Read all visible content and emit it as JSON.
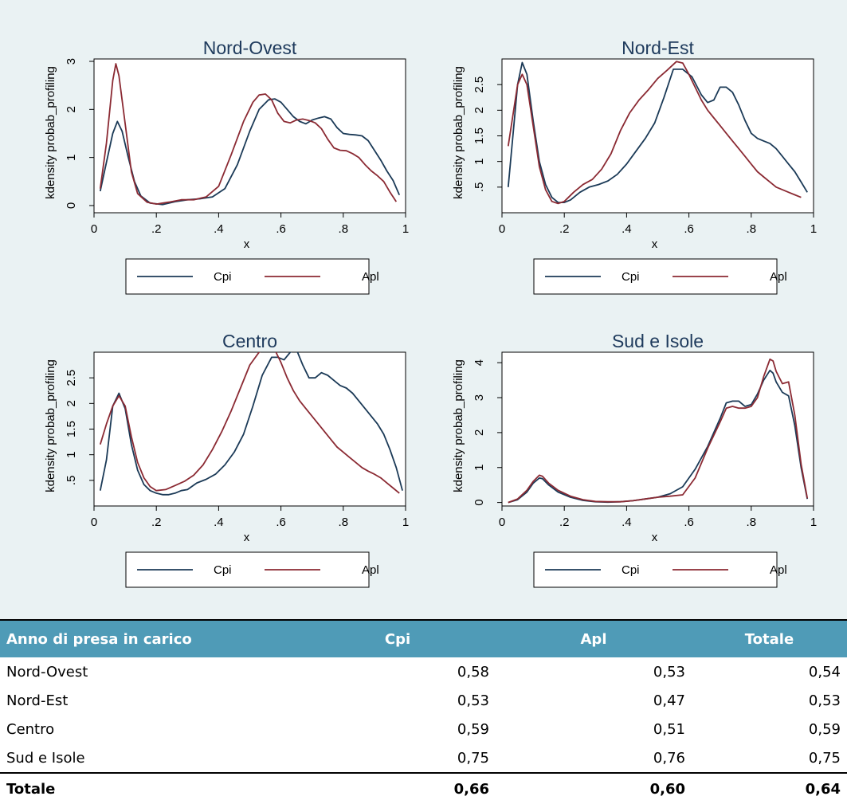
{
  "chart_data": [
    {
      "type": "line",
      "title": "Nord-Ovest",
      "xlabel": "x",
      "ylabel": "kdensity probab_profiling",
      "xlim": [
        0,
        1
      ],
      "ylim": [
        -0.15,
        3.05
      ],
      "xticks": [
        0,
        0.2,
        0.4,
        0.6,
        0.8,
        1
      ],
      "xtick_labels": [
        "0",
        ".2",
        ".4",
        ".6",
        ".8",
        "1"
      ],
      "yticks": [
        0,
        1,
        2,
        3
      ],
      "ytick_labels": [
        "0",
        "1",
        "2",
        "3"
      ],
      "legend": "bottom",
      "series": [
        {
          "name": "Cpi",
          "color": "#1b3a57",
          "x": [
            0.02,
            0.04,
            0.06,
            0.075,
            0.09,
            0.11,
            0.13,
            0.15,
            0.18,
            0.22,
            0.26,
            0.3,
            0.34,
            0.38,
            0.42,
            0.46,
            0.5,
            0.53,
            0.56,
            0.58,
            0.6,
            0.62,
            0.64,
            0.66,
            0.68,
            0.7,
            0.72,
            0.74,
            0.76,
            0.78,
            0.8,
            0.82,
            0.84,
            0.86,
            0.88,
            0.9,
            0.92,
            0.94,
            0.96,
            0.98
          ],
          "y": [
            0.3,
            0.9,
            1.5,
            1.75,
            1.55,
            1.0,
            0.5,
            0.2,
            0.05,
            0.02,
            0.08,
            0.12,
            0.14,
            0.18,
            0.35,
            0.85,
            1.55,
            2.0,
            2.2,
            2.22,
            2.15,
            2.0,
            1.85,
            1.75,
            1.7,
            1.78,
            1.82,
            1.85,
            1.8,
            1.62,
            1.5,
            1.48,
            1.47,
            1.45,
            1.35,
            1.15,
            0.95,
            0.72,
            0.52,
            0.22
          ]
        },
        {
          "name": "Apl",
          "color": "#8b2a33",
          "x": [
            0.02,
            0.04,
            0.06,
            0.07,
            0.08,
            0.1,
            0.12,
            0.14,
            0.17,
            0.2,
            0.24,
            0.28,
            0.32,
            0.36,
            0.4,
            0.44,
            0.48,
            0.51,
            0.53,
            0.55,
            0.57,
            0.59,
            0.61,
            0.63,
            0.65,
            0.67,
            0.69,
            0.71,
            0.73,
            0.75,
            0.77,
            0.79,
            0.81,
            0.83,
            0.85,
            0.87,
            0.89,
            0.91,
            0.93,
            0.95,
            0.97
          ],
          "y": [
            0.35,
            1.3,
            2.6,
            2.95,
            2.7,
            1.7,
            0.7,
            0.25,
            0.07,
            0.03,
            0.07,
            0.12,
            0.12,
            0.18,
            0.4,
            1.05,
            1.75,
            2.15,
            2.3,
            2.32,
            2.2,
            1.92,
            1.75,
            1.72,
            1.78,
            1.8,
            1.77,
            1.72,
            1.6,
            1.38,
            1.2,
            1.15,
            1.14,
            1.08,
            1.0,
            0.85,
            0.72,
            0.62,
            0.5,
            0.28,
            0.08
          ]
        }
      ]
    },
    {
      "type": "line",
      "title": "Nord-Est",
      "xlabel": "x",
      "ylabel": "kdensity probab_profiling",
      "xlim": [
        0,
        1
      ],
      "ylim": [
        0,
        3.0
      ],
      "xticks": [
        0,
        0.2,
        0.4,
        0.6,
        0.8,
        1
      ],
      "xtick_labels": [
        "0",
        ".2",
        ".4",
        ".6",
        ".8",
        "1"
      ],
      "yticks": [
        0.5,
        1,
        1.5,
        2,
        2.5
      ],
      "ytick_labels": [
        ".5",
        "1",
        "1.5",
        "2",
        "2.5"
      ],
      "legend": "bottom",
      "series": [
        {
          "name": "Cpi",
          "color": "#1b3a57",
          "x": [
            0.02,
            0.035,
            0.05,
            0.065,
            0.08,
            0.1,
            0.12,
            0.14,
            0.16,
            0.18,
            0.2,
            0.22,
            0.25,
            0.28,
            0.31,
            0.34,
            0.37,
            0.4,
            0.43,
            0.46,
            0.49,
            0.52,
            0.55,
            0.58,
            0.61,
            0.64,
            0.66,
            0.68,
            0.7,
            0.72,
            0.74,
            0.76,
            0.78,
            0.8,
            0.82,
            0.84,
            0.86,
            0.88,
            0.9,
            0.92,
            0.94,
            0.96,
            0.98
          ],
          "y": [
            0.5,
            1.5,
            2.5,
            2.93,
            2.7,
            1.8,
            1.0,
            0.55,
            0.3,
            0.2,
            0.2,
            0.25,
            0.4,
            0.5,
            0.55,
            0.62,
            0.75,
            0.95,
            1.2,
            1.45,
            1.75,
            2.25,
            2.8,
            2.8,
            2.65,
            2.3,
            2.15,
            2.2,
            2.45,
            2.45,
            2.35,
            2.1,
            1.8,
            1.55,
            1.45,
            1.4,
            1.35,
            1.25,
            1.1,
            0.95,
            0.8,
            0.6,
            0.4
          ]
        },
        {
          "name": "Apl",
          "color": "#8b2a33",
          "x": [
            0.02,
            0.035,
            0.05,
            0.065,
            0.08,
            0.1,
            0.12,
            0.14,
            0.16,
            0.18,
            0.2,
            0.23,
            0.26,
            0.29,
            0.32,
            0.35,
            0.38,
            0.41,
            0.44,
            0.47,
            0.5,
            0.53,
            0.56,
            0.58,
            0.6,
            0.62,
            0.64,
            0.66,
            0.68,
            0.7,
            0.72,
            0.74,
            0.76,
            0.78,
            0.8,
            0.82,
            0.84,
            0.86,
            0.88,
            0.9,
            0.92,
            0.94,
            0.96
          ],
          "y": [
            1.3,
            1.9,
            2.5,
            2.7,
            2.5,
            1.7,
            0.9,
            0.45,
            0.22,
            0.18,
            0.22,
            0.4,
            0.55,
            0.65,
            0.85,
            1.15,
            1.6,
            1.95,
            2.2,
            2.4,
            2.62,
            2.78,
            2.95,
            2.92,
            2.7,
            2.45,
            2.2,
            2.0,
            1.85,
            1.7,
            1.55,
            1.4,
            1.25,
            1.1,
            0.95,
            0.8,
            0.7,
            0.6,
            0.5,
            0.45,
            0.4,
            0.35,
            0.3
          ]
        }
      ]
    },
    {
      "type": "line",
      "title": "Centro",
      "xlabel": "x",
      "ylabel": "kdensity probab_profiling",
      "xlim": [
        0,
        1
      ],
      "ylim": [
        0,
        3.0
      ],
      "xticks": [
        0,
        0.2,
        0.4,
        0.6,
        0.8,
        1
      ],
      "xtick_labels": [
        "0",
        ".2",
        ".4",
        ".6",
        ".8",
        "1"
      ],
      "yticks": [
        0.5,
        1,
        1.5,
        2,
        2.5
      ],
      "ytick_labels": [
        ".5",
        "1",
        "1.5",
        "2",
        "2.5"
      ],
      "legend": "bottom",
      "series": [
        {
          "name": "Cpi",
          "color": "#1b3a57",
          "x": [
            0.02,
            0.04,
            0.06,
            0.08,
            0.1,
            0.12,
            0.14,
            0.16,
            0.18,
            0.2,
            0.22,
            0.24,
            0.26,
            0.28,
            0.3,
            0.33,
            0.36,
            0.39,
            0.42,
            0.45,
            0.48,
            0.51,
            0.54,
            0.57,
            0.59,
            0.61,
            0.63,
            0.65,
            0.67,
            0.69,
            0.71,
            0.73,
            0.75,
            0.77,
            0.79,
            0.81,
            0.83,
            0.85,
            0.87,
            0.89,
            0.91,
            0.93,
            0.95,
            0.97,
            0.99
          ],
          "y": [
            0.3,
            0.9,
            1.95,
            2.2,
            1.9,
            1.2,
            0.7,
            0.42,
            0.3,
            0.25,
            0.22,
            0.22,
            0.25,
            0.3,
            0.32,
            0.45,
            0.52,
            0.62,
            0.8,
            1.05,
            1.4,
            1.95,
            2.55,
            2.9,
            2.9,
            2.85,
            3.0,
            3.05,
            2.75,
            2.5,
            2.5,
            2.6,
            2.55,
            2.45,
            2.35,
            2.3,
            2.2,
            2.05,
            1.9,
            1.75,
            1.6,
            1.4,
            1.1,
            0.75,
            0.3
          ]
        },
        {
          "name": "Apl",
          "color": "#8b2a33",
          "x": [
            0.02,
            0.04,
            0.06,
            0.08,
            0.1,
            0.12,
            0.14,
            0.16,
            0.18,
            0.2,
            0.23,
            0.26,
            0.29,
            0.32,
            0.35,
            0.38,
            0.41,
            0.44,
            0.47,
            0.5,
            0.53,
            0.56,
            0.58,
            0.6,
            0.62,
            0.64,
            0.66,
            0.68,
            0.7,
            0.72,
            0.74,
            0.76,
            0.78,
            0.8,
            0.82,
            0.84,
            0.86,
            0.88,
            0.9,
            0.92,
            0.94,
            0.96,
            0.98
          ],
          "y": [
            1.2,
            1.6,
            1.95,
            2.15,
            1.95,
            1.35,
            0.85,
            0.55,
            0.38,
            0.3,
            0.32,
            0.4,
            0.48,
            0.6,
            0.8,
            1.1,
            1.45,
            1.85,
            2.3,
            2.75,
            3.0,
            3.1,
            3.05,
            2.8,
            2.5,
            2.25,
            2.05,
            1.9,
            1.75,
            1.6,
            1.45,
            1.3,
            1.15,
            1.05,
            0.95,
            0.85,
            0.75,
            0.68,
            0.62,
            0.55,
            0.45,
            0.35,
            0.25
          ]
        }
      ]
    },
    {
      "type": "line",
      "title": "Sud e Isole",
      "xlabel": "x",
      "ylabel": "kdensity probab_profiling",
      "xlim": [
        0,
        1
      ],
      "ylim": [
        -0.1,
        4.3
      ],
      "xticks": [
        0,
        0.2,
        0.4,
        0.6,
        0.8,
        1
      ],
      "xtick_labels": [
        "0",
        ".2",
        ".4",
        ".6",
        ".8",
        "1"
      ],
      "yticks": [
        0,
        1,
        2,
        3,
        4
      ],
      "ytick_labels": [
        "0",
        "1",
        "2",
        "3",
        "4"
      ],
      "legend": "bottom",
      "series": [
        {
          "name": "Cpi",
          "color": "#1b3a57",
          "x": [
            0.02,
            0.05,
            0.08,
            0.1,
            0.12,
            0.13,
            0.15,
            0.18,
            0.22,
            0.26,
            0.3,
            0.34,
            0.38,
            0.42,
            0.46,
            0.5,
            0.54,
            0.58,
            0.62,
            0.66,
            0.7,
            0.72,
            0.74,
            0.76,
            0.78,
            0.8,
            0.82,
            0.84,
            0.86,
            0.87,
            0.88,
            0.9,
            0.92,
            0.94,
            0.96,
            0.98
          ],
          "y": [
            0,
            0.08,
            0.3,
            0.55,
            0.7,
            0.68,
            0.5,
            0.3,
            0.15,
            0.06,
            0.02,
            0.01,
            0.02,
            0.05,
            0.1,
            0.15,
            0.25,
            0.45,
            0.95,
            1.6,
            2.4,
            2.85,
            2.9,
            2.9,
            2.75,
            2.8,
            3.1,
            3.5,
            3.78,
            3.7,
            3.45,
            3.15,
            3.05,
            2.2,
            1.0,
            0.1
          ]
        },
        {
          "name": "Apl",
          "color": "#8b2a33",
          "x": [
            0.02,
            0.05,
            0.08,
            0.1,
            0.12,
            0.13,
            0.15,
            0.18,
            0.22,
            0.26,
            0.3,
            0.34,
            0.38,
            0.42,
            0.46,
            0.5,
            0.54,
            0.58,
            0.62,
            0.66,
            0.7,
            0.72,
            0.74,
            0.76,
            0.78,
            0.8,
            0.82,
            0.84,
            0.86,
            0.87,
            0.88,
            0.9,
            0.92,
            0.94,
            0.96,
            0.98
          ],
          "y": [
            0,
            0.1,
            0.35,
            0.6,
            0.78,
            0.75,
            0.55,
            0.35,
            0.18,
            0.08,
            0.03,
            0.02,
            0.02,
            0.05,
            0.1,
            0.15,
            0.18,
            0.22,
            0.7,
            1.55,
            2.3,
            2.7,
            2.75,
            2.7,
            2.7,
            2.75,
            3.0,
            3.6,
            4.1,
            4.05,
            3.75,
            3.4,
            3.45,
            2.5,
            1.1,
            0.12
          ]
        }
      ]
    }
  ],
  "table": {
    "header": [
      "Anno di presa in carico",
      "Cpi",
      "Apl",
      "Totale"
    ],
    "rows": [
      [
        "Nord-Ovest",
        "0,58",
        "0,53",
        "0,54"
      ],
      [
        "Nord-Est",
        "0,53",
        "0,47",
        "0,53"
      ],
      [
        "Centro",
        "0,59",
        "0,51",
        "0,59"
      ],
      [
        "Sud e Isole",
        "0,75",
        "0,76",
        "0,75"
      ]
    ],
    "total": [
      "Totale",
      "0,66",
      "0,60",
      "0,64"
    ]
  }
}
